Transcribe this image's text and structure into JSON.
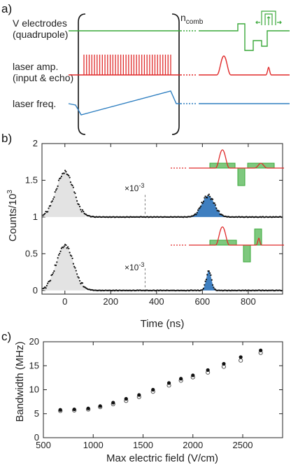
{
  "panel_a": {
    "panel_label": "a)",
    "n_comb_label": "n",
    "n_comb_sub": "comb",
    "rows": [
      {
        "name": "electrodes",
        "label1": "V electrodes",
        "label2": "(quadrupole)",
        "color": "#3aa83a"
      },
      {
        "name": "laser-amp",
        "label1": "laser amp.",
        "label2": "(input & echo)",
        "color": "#e02a2a"
      },
      {
        "name": "laser-freq",
        "label1": "laser freq.",
        "label2": "",
        "color": "#2f7fc1"
      }
    ],
    "pulse_count": 34
  },
  "panel_b": {
    "panel_label": "b)",
    "scale_note_1": "×10",
    "scale_note_1_exp": "-3",
    "scale_note_2": "×10",
    "scale_note_2_exp": "-3",
    "colors": {
      "echo": "#3f7fc0",
      "input": "#e3e3e3",
      "fit": "#111111"
    }
  },
  "panel_c": {
    "panel_label": "c)"
  },
  "chart_data": [
    {
      "type": "scatter",
      "title": "",
      "xlabel": "Time (ns)",
      "ylabel": "Counts/10",
      "ylabel_sup": "3",
      "xlim": [
        -100,
        950
      ],
      "ylim": [
        -0.05,
        2.0
      ],
      "xticks": [
        0,
        200,
        400,
        600,
        800
      ],
      "yticks": [
        0,
        0.5,
        1,
        1.5,
        2
      ],
      "ytick_labels": [
        "0",
        "0.5",
        "1",
        "1.5",
        "2"
      ],
      "series": [
        {
          "trace": "upper",
          "offset": 1.0,
          "input_center": 0,
          "input_width": 38,
          "input_height": 0.61,
          "echo_center": 625,
          "echo_width": 28,
          "echo_height": 0.29
        },
        {
          "trace": "lower",
          "offset": 0.0,
          "input_center": 0,
          "input_width": 38,
          "input_height": 0.61,
          "echo_center": 628,
          "echo_width": 11,
          "echo_height": 0.27
        }
      ],
      "divider_x": 350
    },
    {
      "type": "scatter",
      "title": "",
      "xlabel": "Max electric field (V/cm)",
      "ylabel": "Bandwidth (MHz)",
      "xlim": [
        500,
        2900
      ],
      "ylim": [
        0,
        20
      ],
      "xticks": [
        500,
        1000,
        1500,
        2000,
        2500
      ],
      "yticks": [
        0,
        5,
        10,
        15,
        20
      ],
      "series": [
        {
          "marker": "filled",
          "x": [
            670,
            810,
            950,
            1070,
            1200,
            1330,
            1460,
            1600,
            1760,
            1880,
            2000,
            2150,
            2310,
            2480,
            2680
          ],
          "y": [
            5.8,
            5.9,
            6.1,
            6.6,
            7.3,
            8.1,
            8.9,
            10.0,
            11.4,
            12.3,
            13.0,
            14.1,
            15.4,
            16.8,
            18.2
          ]
        },
        {
          "marker": "open",
          "x": [
            670,
            810,
            950,
            1070,
            1200,
            1330,
            1460,
            1600,
            1760,
            1880,
            2000,
            2150,
            2310,
            2480,
            2680
          ],
          "y": [
            5.6,
            5.7,
            5.9,
            6.4,
            7.0,
            7.7,
            8.5,
            9.6,
            10.9,
            11.9,
            12.6,
            13.6,
            14.8,
            16.1,
            17.7
          ]
        }
      ]
    }
  ]
}
